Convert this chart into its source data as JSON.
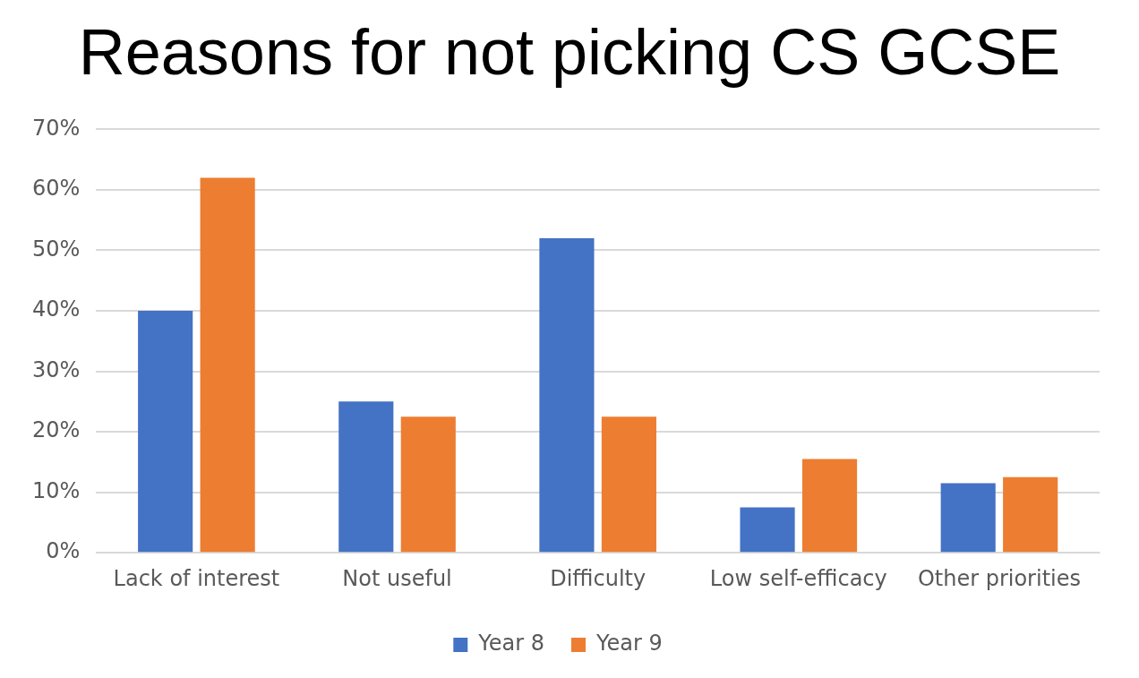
{
  "chart_data": {
    "type": "bar",
    "title": "Reasons for not picking CS GCSE",
    "categories": [
      "Lack of interest",
      "Not useful",
      "Difficulty",
      "Low self-efficacy",
      "Other priorities"
    ],
    "series": [
      {
        "name": "Year 8",
        "color": "#4472c4",
        "values": [
          40,
          25,
          52,
          7.5,
          11.5
        ]
      },
      {
        "name": "Year 9",
        "color": "#ed7d31",
        "values": [
          62,
          22.5,
          22.5,
          15.5,
          12.5
        ]
      }
    ],
    "ylim": [
      0,
      70
    ],
    "yticks": [
      {
        "value": 0,
        "label": "0%"
      },
      {
        "value": 10,
        "label": "10%"
      },
      {
        "value": 20,
        "label": "20%"
      },
      {
        "value": 30,
        "label": "30%"
      },
      {
        "value": 40,
        "label": "40%"
      },
      {
        "value": 50,
        "label": "50%"
      },
      {
        "value": 60,
        "label": "60%"
      },
      {
        "value": 70,
        "label": "70%"
      }
    ],
    "grid": "y",
    "legend": "bottom"
  }
}
